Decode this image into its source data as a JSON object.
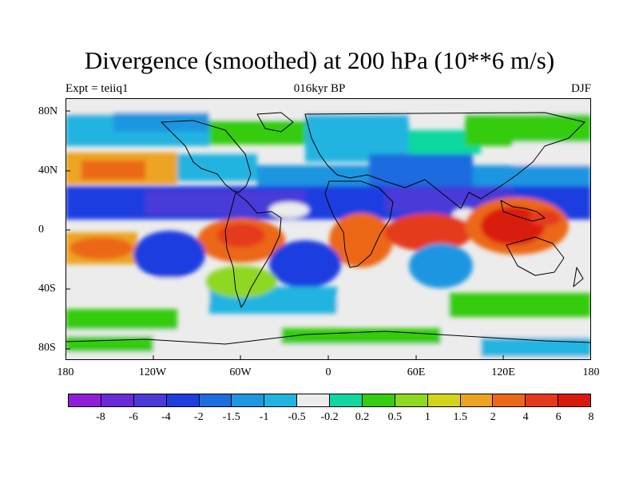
{
  "title": "Divergence (smoothed) at 200 hPa (10**6 m/s)",
  "subtitle_left": "Expt = teiiq1",
  "subtitle_center": "016kyr BP",
  "subtitle_right": "DJF",
  "lat_ticks": [
    "80N",
    "40N",
    "0",
    "40S",
    "80S"
  ],
  "lon_ticks": [
    "180",
    "120W",
    "60W",
    "0",
    "60E",
    "120E",
    "180"
  ],
  "colorbar": {
    "labels": [
      "-8",
      "-6",
      "-4",
      "-2",
      "-1.5",
      "-1",
      "-0.5",
      "-0.2",
      "0.2",
      "0.5",
      "1",
      "1.5",
      "2",
      "4",
      "6",
      "8"
    ],
    "colors": [
      "#8e1ed8",
      "#6a2ad8",
      "#4a3ad8",
      "#1e3ee0",
      "#1f6cdf",
      "#1e96e0",
      "#20b4e0",
      "#ececec",
      "#10d8a0",
      "#36cc10",
      "#8ed820",
      "#d2d41a",
      "#eca420",
      "#ec6818",
      "#e43a1a",
      "#d81a0e"
    ]
  }
}
